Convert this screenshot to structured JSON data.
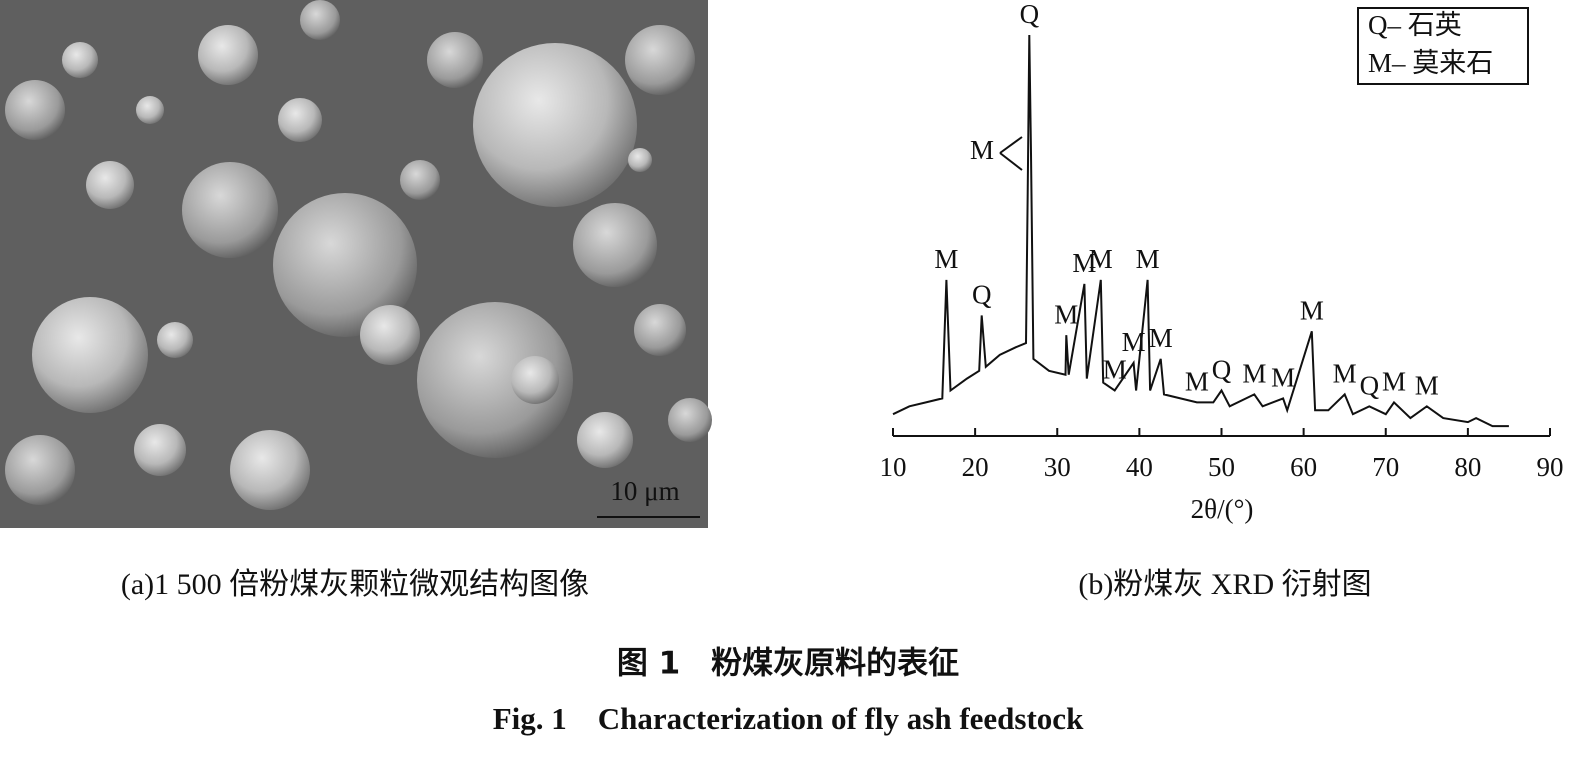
{
  "panel_a": {
    "scale_bar": "10 μm",
    "caption": "(a)1 500 倍粉煤灰颗粒微观结构图像"
  },
  "chart_data": {
    "type": "line",
    "xlabel": "2θ/(°)",
    "caption": "(b)粉煤灰 XRD 衍射图",
    "legend": [
      "Q– 石英",
      "M– 莫来石"
    ],
    "xlim": [
      10,
      90
    ],
    "xticks": [
      10,
      20,
      30,
      40,
      50,
      60,
      70,
      80,
      90
    ],
    "ylim": [
      0,
      100
    ],
    "color": "#111111",
    "x": [
      10,
      12,
      14,
      16,
      16.5,
      17,
      19,
      20.5,
      20.8,
      21.3,
      23,
      25,
      26.2,
      26.4,
      26.6,
      26.8,
      27.1,
      29,
      31,
      31.1,
      31.4,
      33.3,
      33.6,
      35.3,
      35.6,
      37,
      39.3,
      39.6,
      41,
      41.3,
      42.6,
      43,
      45,
      47,
      49,
      50,
      51,
      54,
      55,
      57.5,
      58,
      61,
      61.4,
      63,
      65,
      66,
      68,
      70,
      71,
      73,
      75,
      77,
      80,
      81,
      83,
      85
    ],
    "values": [
      4,
      6,
      7,
      8,
      38,
      10,
      13,
      15,
      29,
      16,
      19,
      21,
      22,
      60,
      100,
      70,
      18,
      15,
      14,
      24,
      14,
      37,
      13,
      38,
      12,
      10,
      17,
      10,
      38,
      10,
      18,
      9,
      8,
      7,
      7,
      10,
      6,
      9,
      6,
      8,
      5,
      25,
      5,
      5,
      9,
      4,
      6,
      4,
      7,
      3,
      6,
      3,
      2,
      3,
      1,
      1
    ],
    "annotations": [
      {
        "label": "M",
        "x": 16.5
      },
      {
        "label": "Q",
        "x": 20.8
      },
      {
        "label": "Q",
        "x": 26.6
      },
      {
        "label": "M",
        "x": 31.1
      },
      {
        "label": "M",
        "x": 33.3
      },
      {
        "label": "M",
        "x": 35.3
      },
      {
        "label": "M",
        "x": 37
      },
      {
        "label": "M",
        "x": 39.3
      },
      {
        "label": "M",
        "x": 41
      },
      {
        "label": "M",
        "x": 42.6
      },
      {
        "label": "M",
        "x": 47
      },
      {
        "label": "Q",
        "x": 50
      },
      {
        "label": "M",
        "x": 54
      },
      {
        "label": "M",
        "x": 57.5
      },
      {
        "label": "M",
        "x": 61
      },
      {
        "label": "M",
        "x": 65
      },
      {
        "label": "Q",
        "x": 68
      },
      {
        "label": "M",
        "x": 71
      },
      {
        "label": "M",
        "x": 75
      }
    ],
    "arrow_annotation": {
      "label": "M"
    }
  },
  "figure": {
    "title_cn": "图 1　粉煤灰原料的表征",
    "title_en": "Fig. 1　Characterization of fly ash feedstock"
  }
}
